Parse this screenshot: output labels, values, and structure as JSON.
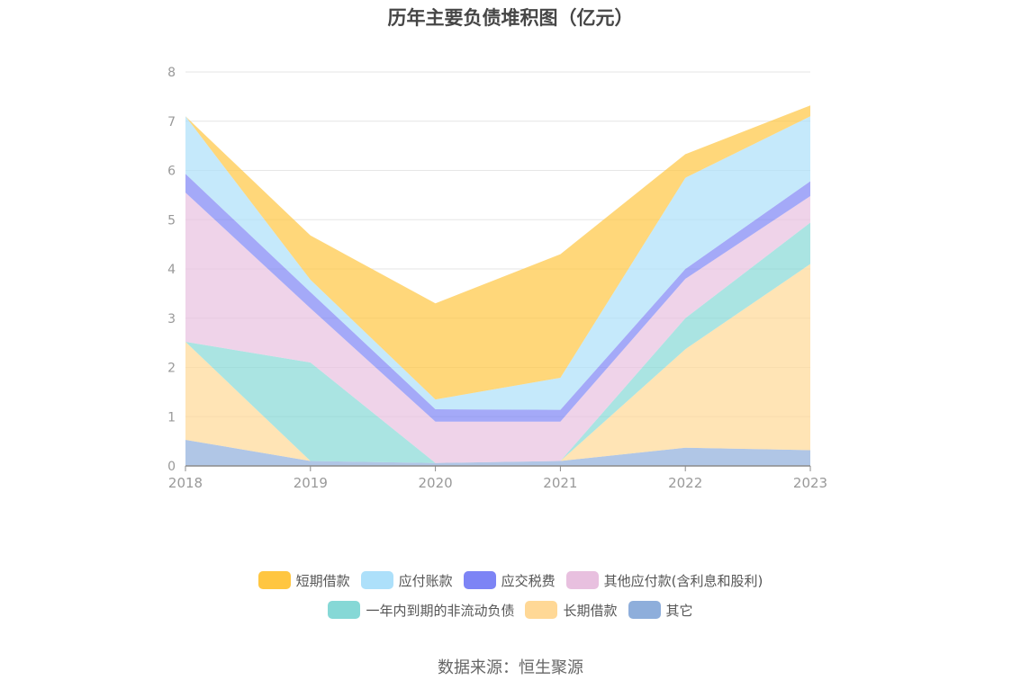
{
  "chart_data": {
    "type": "area",
    "title": "历年主要负债堆积图（亿元）",
    "categories": [
      "2018",
      "2019",
      "2020",
      "2021",
      "2022",
      "2023"
    ],
    "ylim": [
      0,
      8
    ],
    "yticks": [
      0,
      1,
      2,
      3,
      4,
      5,
      6,
      7,
      8
    ],
    "stacked": true,
    "grid": true,
    "legend_position": "bottom",
    "series": [
      {
        "name": "其它",
        "color": "#8eaedb",
        "values": [
          0.53,
          0.1,
          0.06,
          0.1,
          0.37,
          0.32
        ]
      },
      {
        "name": "长期借款",
        "color": "#ffd896",
        "values": [
          1.99,
          0.0,
          0.0,
          0.0,
          2.0,
          3.78
        ]
      },
      {
        "name": "一年内到期的非流动负债",
        "color": "#86d8d6",
        "values": [
          0.0,
          2.0,
          0.0,
          0.0,
          0.63,
          0.84
        ]
      },
      {
        "name": "其他应付款(含利息和股利)",
        "color": "#e8c0df",
        "values": [
          3.03,
          1.1,
          0.84,
          0.8,
          0.8,
          0.54
        ]
      },
      {
        "name": "应交税费",
        "color": "#7d84f5",
        "values": [
          0.38,
          0.33,
          0.25,
          0.24,
          0.2,
          0.3
        ]
      },
      {
        "name": "应付账款",
        "color": "#ade0fa",
        "values": [
          1.17,
          0.25,
          0.2,
          0.65,
          1.85,
          1.32
        ]
      },
      {
        "name": "短期借款",
        "color": "#ffc641",
        "values": [
          0.0,
          0.9,
          1.95,
          2.51,
          0.48,
          0.22
        ]
      }
    ]
  },
  "legend_rows": [
    [
      {
        "label": "短期借款",
        "color": "#ffc641"
      },
      {
        "label": "应付账款",
        "color": "#ade0fa"
      },
      {
        "label": "应交税费",
        "color": "#7d84f5"
      },
      {
        "label": "其他应付款(含利息和股利)",
        "color": "#e8c0df"
      }
    ],
    [
      {
        "label": "一年内到期的非流动负债",
        "color": "#86d8d6"
      },
      {
        "label": "长期借款",
        "color": "#ffd896"
      },
      {
        "label": "其它",
        "color": "#8eaedb"
      }
    ]
  ],
  "source": "数据来源：恒生聚源"
}
